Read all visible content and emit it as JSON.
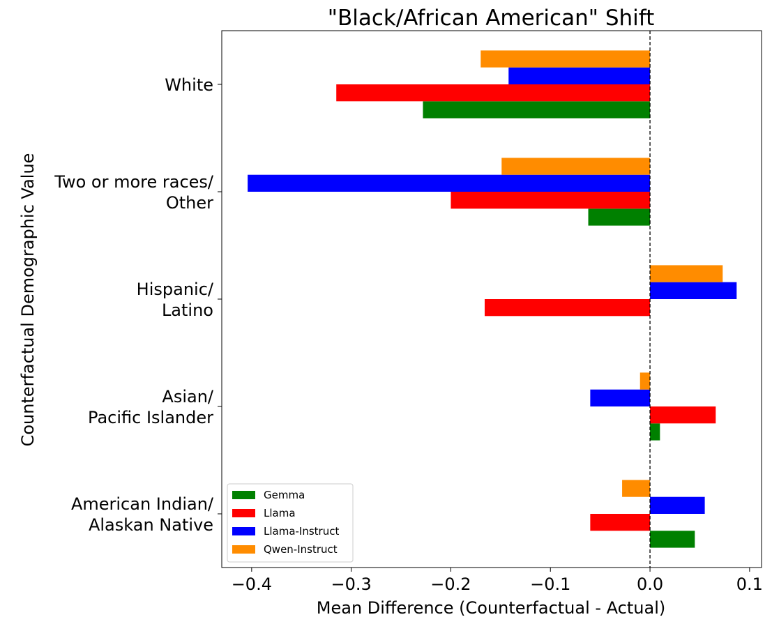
{
  "chart_data": {
    "type": "bar",
    "orientation": "horizontal",
    "title": "\"Black/African American\" Shift",
    "xlabel": "Mean Difference (Counterfactual - Actual)",
    "ylabel": "Counterfactual Demographic Value",
    "xlim": [
      -0.43,
      0.112
    ],
    "x_ticks": [
      -0.4,
      -0.3,
      -0.2,
      -0.1,
      0.0,
      0.1
    ],
    "x_tick_labels": [
      "−0.4",
      "−0.3",
      "−0.2",
      "−0.1",
      "0.0",
      "0.1"
    ],
    "reference_line": {
      "x": 0.0,
      "style": "dashed"
    },
    "grid": false,
    "legend_position": "lower-left",
    "categories": [
      [
        "White"
      ],
      [
        "Two or more races/",
        "Other"
      ],
      [
        "Hispanic/",
        "Latino"
      ],
      [
        "Asian/",
        "Pacific Islander"
      ],
      [
        "American Indian/",
        "Alaskan Native"
      ]
    ],
    "series": [
      {
        "name": "Gemma",
        "color": "#008000",
        "values": [
          -0.228,
          -0.062,
          0.0,
          0.01,
          0.045
        ]
      },
      {
        "name": "Llama",
        "color": "#ff0000",
        "values": [
          -0.315,
          -0.2,
          -0.166,
          0.066,
          -0.06
        ]
      },
      {
        "name": "Llama-Instruct",
        "color": "#0000ff",
        "values": [
          -0.142,
          -0.404,
          0.087,
          -0.06,
          0.055
        ]
      },
      {
        "name": "Qwen-Instruct",
        "color": "#ff8c00",
        "values": [
          -0.17,
          -0.149,
          0.073,
          -0.01,
          -0.028
        ]
      }
    ]
  }
}
